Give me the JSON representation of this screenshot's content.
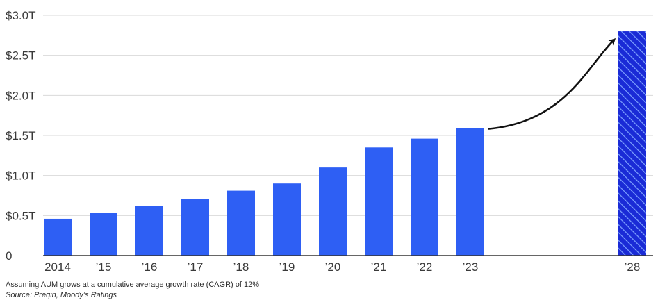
{
  "chart_data": {
    "type": "bar",
    "categories": [
      "2014",
      "’15",
      "’16",
      "’17",
      "’18",
      "’19",
      "’20",
      "’21",
      "’22",
      "’23",
      "’28"
    ],
    "values": [
      0.46,
      0.53,
      0.62,
      0.71,
      0.81,
      0.9,
      1.1,
      1.35,
      1.46,
      1.59,
      2.8
    ],
    "projected": [
      false,
      false,
      false,
      false,
      false,
      false,
      false,
      false,
      false,
      false,
      true
    ],
    "ylim": [
      0,
      3.0
    ],
    "y_ticks": [
      0,
      0.5,
      1.0,
      1.5,
      2.0,
      2.5,
      3.0
    ],
    "y_tick_labels": [
      "0",
      "$0.5T",
      "$1.0T",
      "$1.5T",
      "$2.0T",
      "$2.5T",
      "$3.0T"
    ],
    "grid": true,
    "colors": {
      "bar": "#2e5ff4",
      "projected_bar": "#1a2bd6",
      "projected_hatch": "#7fa3ff",
      "grid": "#d9d9d9",
      "axis": "#333333",
      "arrow": "#111111"
    },
    "annotation": "arrow-from-2023-to-2028"
  },
  "footnotes": {
    "note": "Assuming AUM grows at a cumulative average growth rate (CAGR) of 12%",
    "source": "Source: Preqin, Moody’s Ratings"
  }
}
